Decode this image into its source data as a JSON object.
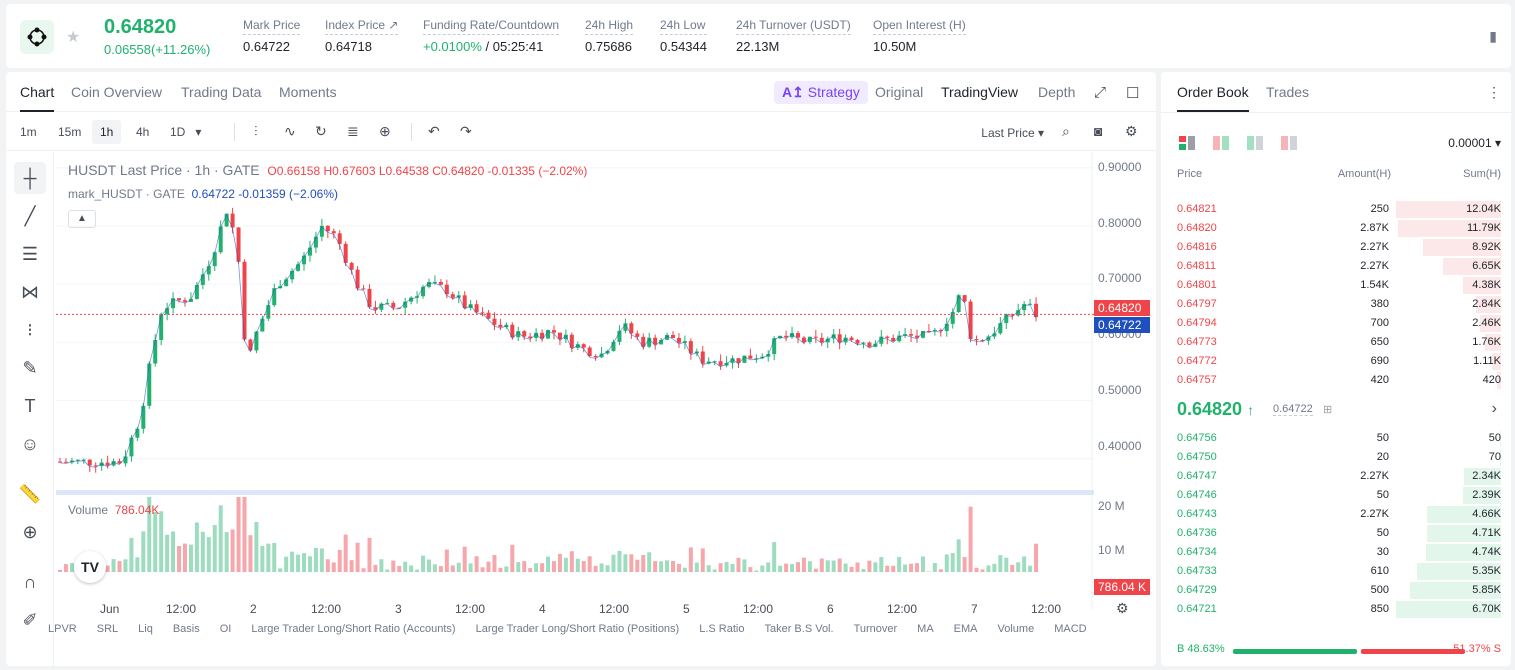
{
  "header": {
    "last": "0.64820",
    "change": "0.06558(+11.26%)",
    "stats": [
      {
        "label": "Mark Price",
        "value": "0.64722"
      },
      {
        "label": "Index Price ↗",
        "value": "0.64718"
      },
      {
        "label": "Funding Rate/Countdown",
        "value": "+0.0100%",
        "value2": " / 05:25:41"
      },
      {
        "label": "24h High",
        "value": "0.75686"
      },
      {
        "label": "24h Low",
        "value": "0.54344"
      },
      {
        "label": "24h Turnover (USDT)",
        "value": "22.13M"
      },
      {
        "label": "Open Interest (H)",
        "value": "10.50M"
      }
    ]
  },
  "chart_tabs": [
    "Chart",
    "Coin Overview",
    "Trading Data",
    "Moments"
  ],
  "view_tabs": {
    "strategy": "Strategy",
    "original": "Original",
    "tradingview": "TradingView",
    "depth": "Depth"
  },
  "intervals": [
    "1m",
    "15m",
    "1h",
    "4h",
    "1D"
  ],
  "last_price_sel": "Last Price",
  "legend": {
    "title": "HUSDT Last Price · 1h · GATE",
    "ohlc": "O0.66158  H0.67603  L0.64538  C0.64820  -0.01335  (−2.02%)",
    "mark": "mark_HUSDT · GATE",
    "mark_val": "0.64722  -0.01359  (−2.06%)"
  },
  "volume_label": "Volume",
  "volume_value": "786.04K",
  "yaxis": [
    "0.90000",
    "0.80000",
    "0.70000",
    "0.60000",
    "0.50000",
    "0.40000"
  ],
  "vol_axis": [
    "20 M",
    "10 M"
  ],
  "price_tags": {
    "last": "0.64820",
    "mark": "0.64722",
    "vol": "786.04 K"
  },
  "xaxis": [
    "Jun",
    "12:00",
    "2",
    "12:00",
    "3",
    "12:00",
    "4",
    "12:00",
    "5",
    "12:00",
    "6",
    "12:00",
    "7",
    "12:00"
  ],
  "indicators": [
    "LPVR",
    "SRL",
    "Liq",
    "Basis",
    "OI",
    "Large Trader Long/Short Ratio (Accounts)",
    "Large Trader Long/Short Ratio (Positions)",
    "L.S Ratio",
    "Taker B.S Vol.",
    "Turnover",
    "MA",
    "EMA",
    "Volume",
    "MACD"
  ],
  "colors": {
    "up": "#20b26c",
    "down": "#ef454a"
  },
  "book": {
    "tabs": [
      "Order Book",
      "Trades"
    ],
    "precision": "0.00001",
    "headers": [
      "Price",
      "Amount(H)",
      "Sum(H)"
    ],
    "asks": [
      [
        "0.64821",
        "250",
        "12.04K",
        1.0
      ],
      [
        "0.64820",
        "2.87K",
        "11.79K",
        0.98
      ],
      [
        "0.64816",
        "2.27K",
        "8.92K",
        0.74
      ],
      [
        "0.64811",
        "2.27K",
        "6.65K",
        0.55
      ],
      [
        "0.64801",
        "1.54K",
        "4.38K",
        0.36
      ],
      [
        "0.64797",
        "380",
        "2.84K",
        0.24
      ],
      [
        "0.64794",
        "700",
        "2.46K",
        0.2
      ],
      [
        "0.64773",
        "650",
        "1.76K",
        0.15
      ],
      [
        "0.64772",
        "690",
        "1.11K",
        0.09
      ],
      [
        "0.64757",
        "420",
        "420",
        0.04
      ]
    ],
    "mid": "0.64820",
    "mid_mark": "0.64722",
    "bids": [
      [
        "0.64756",
        "50",
        "50",
        0.01
      ],
      [
        "0.64750",
        "20",
        "70",
        0.01
      ],
      [
        "0.64747",
        "2.27K",
        "2.34K",
        0.35
      ],
      [
        "0.64746",
        "50",
        "2.39K",
        0.36
      ],
      [
        "0.64743",
        "2.27K",
        "4.66K",
        0.7
      ],
      [
        "0.64736",
        "50",
        "4.71K",
        0.7
      ],
      [
        "0.64734",
        "30",
        "4.74K",
        0.71
      ],
      [
        "0.64733",
        "610",
        "5.35K",
        0.8
      ],
      [
        "0.64729",
        "500",
        "5.85K",
        0.87
      ],
      [
        "0.64721",
        "850",
        "6.70K",
        1.0
      ]
    ],
    "buy": "B 48.63%",
    "sell": "51.37% S"
  }
}
